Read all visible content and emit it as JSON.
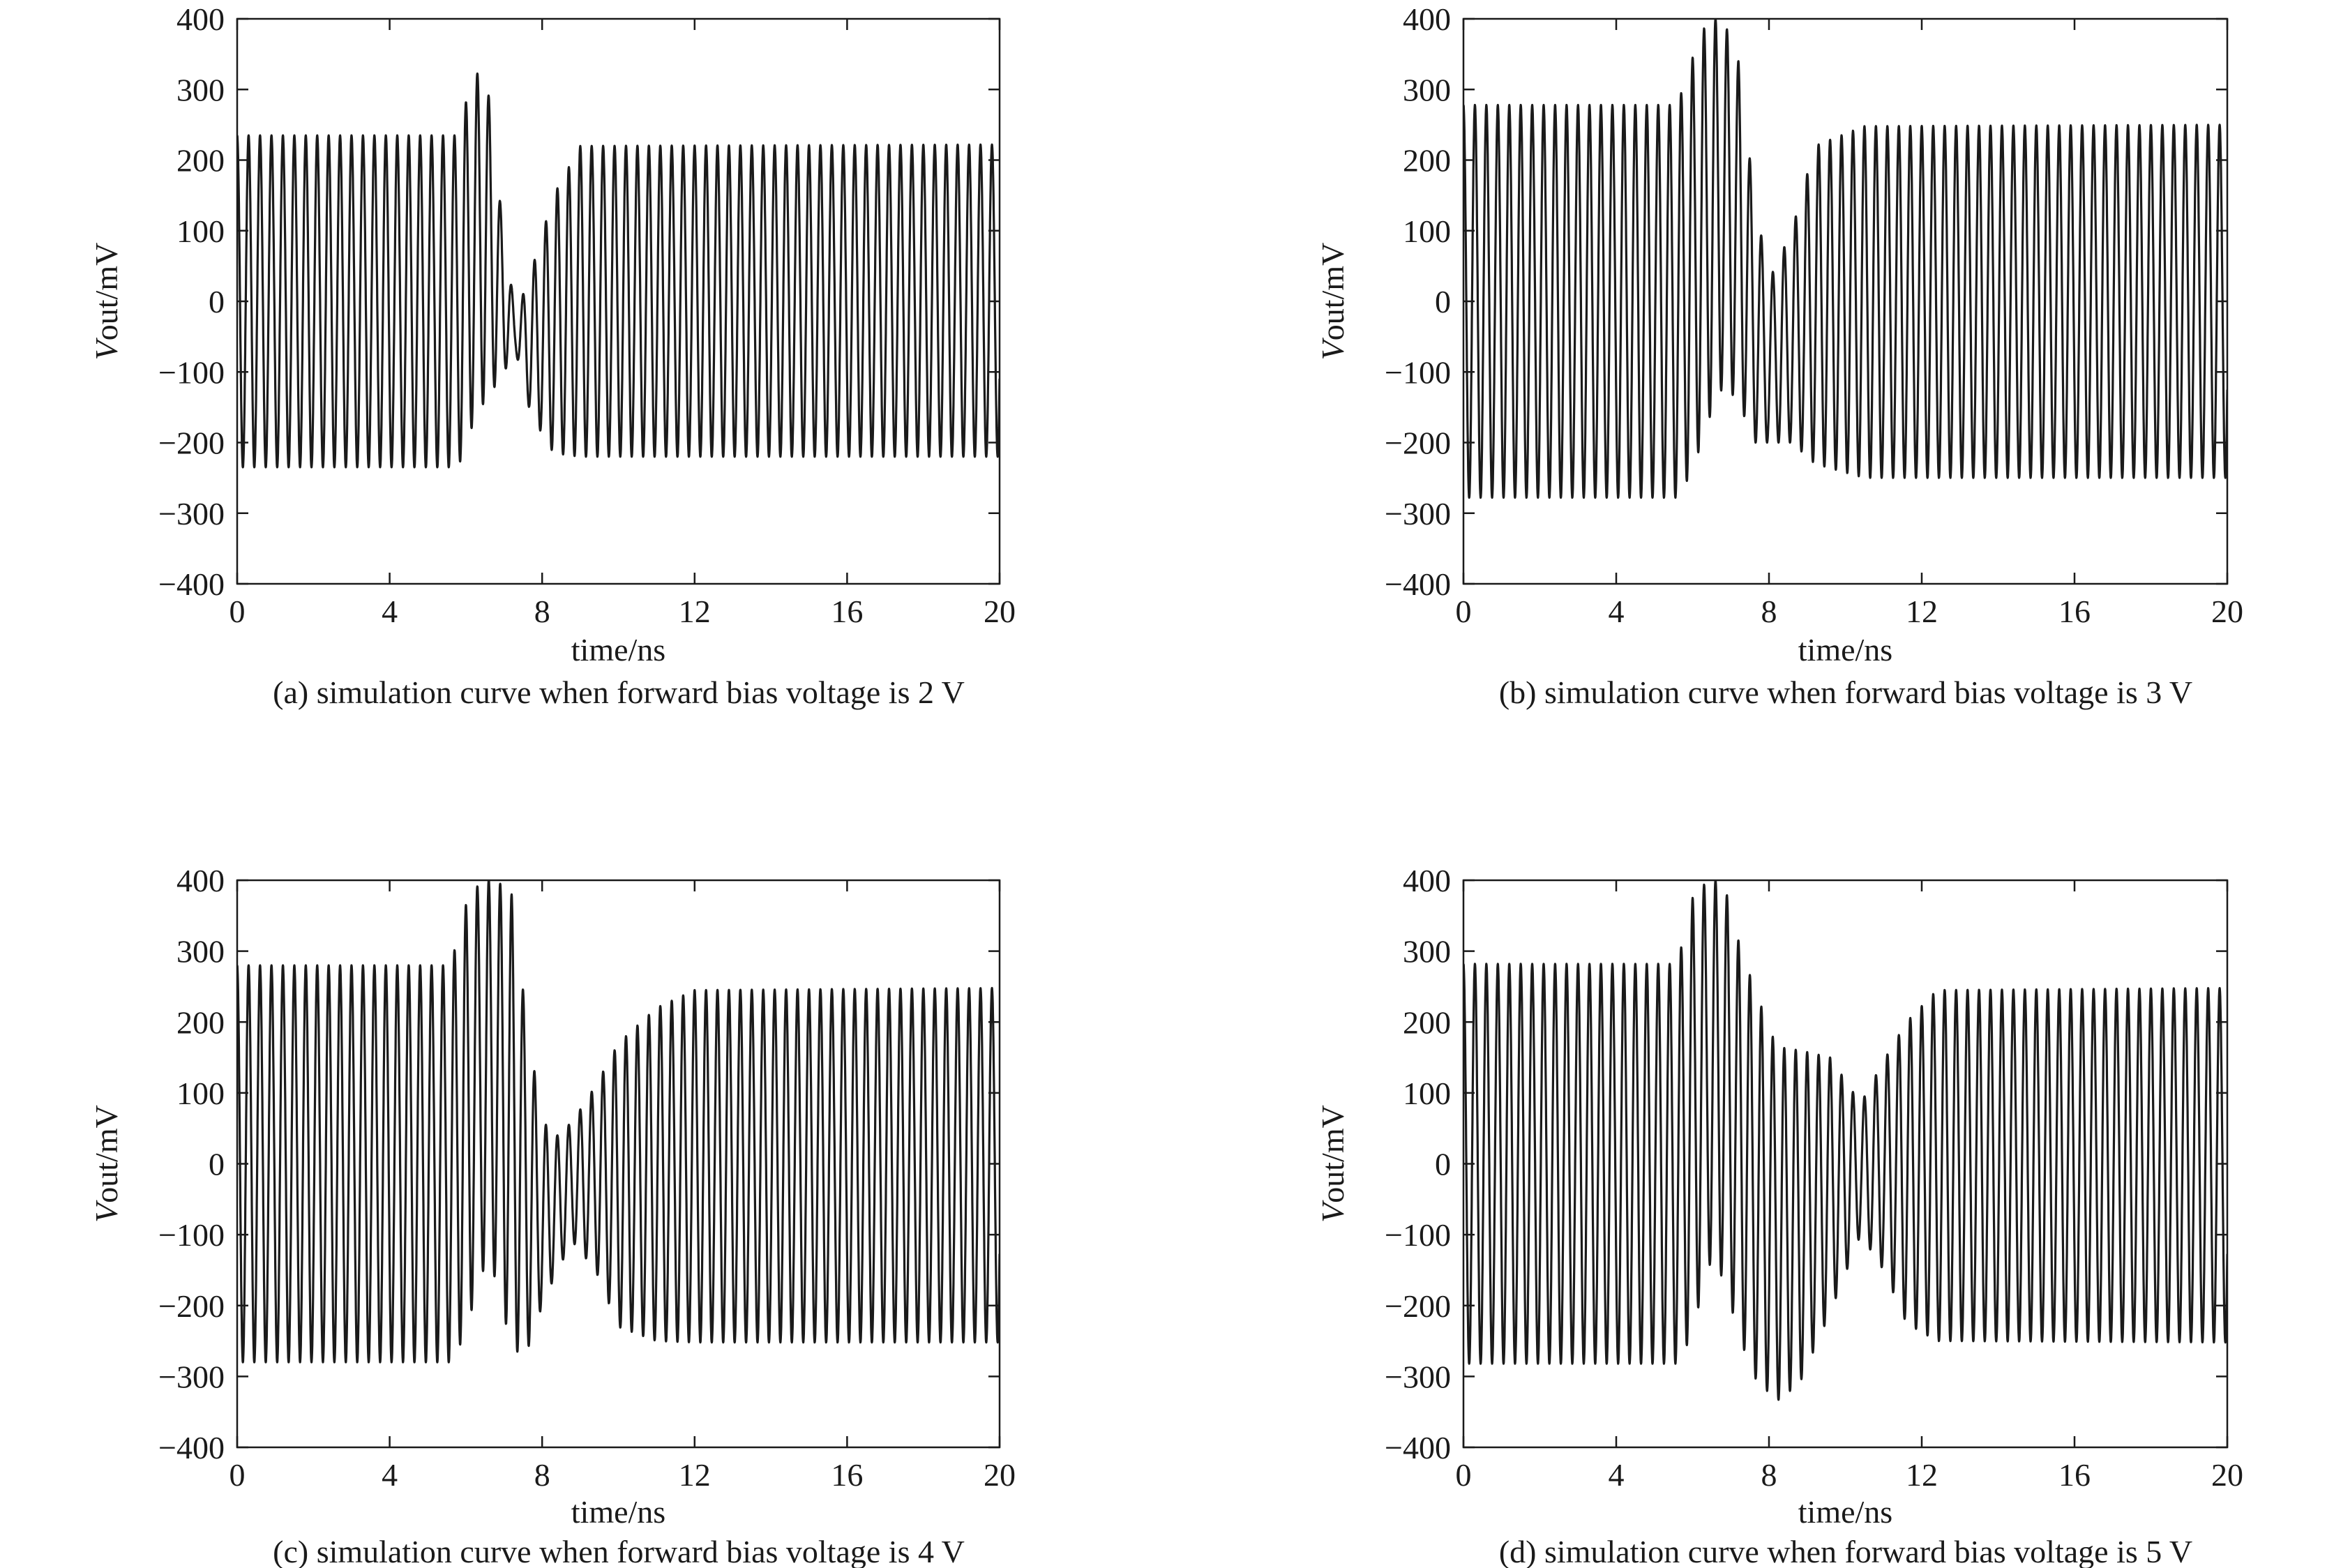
{
  "chart_data": [
    {
      "type": "line",
      "caption": "(a) simulation curve when forward bias voltage is 2 V",
      "xlabel": "time/ns",
      "ylabel": {
        "italic": "V",
        "rest": "out/mV"
      },
      "xlim": [
        0,
        20
      ],
      "ylim": [
        -400,
        400
      ],
      "xticks": [
        0,
        4,
        8,
        12,
        16,
        20
      ],
      "yticks": [
        400,
        300,
        200,
        100,
        0,
        -100,
        -200,
        -300,
        -400
      ],
      "ytick_labels": [
        "400",
        "300",
        "200",
        "100",
        "0",
        "−100",
        "−200",
        "−300",
        "−400"
      ],
      "grid": false,
      "legend": "none",
      "period_ns": 0.3,
      "series": [
        {
          "color": "#1a1a1a",
          "x": [
            0,
            5.8,
            6.1,
            6.5,
            6.9,
            7.3,
            7.7,
            8.3,
            9.0,
            20
          ],
          "envelope_max": [
            235,
            235,
            305,
            340,
            140,
            -20,
            40,
            150,
            220,
            222
          ],
          "envelope_min": [
            -235,
            -235,
            -185,
            -140,
            -110,
            -70,
            -160,
            -215,
            -220,
            -220
          ]
        }
      ]
    },
    {
      "type": "line",
      "caption": "(b) simulation curve when forward bias voltage is 3 V",
      "xlabel": "time/ns",
      "ylabel": {
        "italic": "V",
        "rest": "out/mV"
      },
      "xlim": [
        0,
        20
      ],
      "ylim": [
        -400,
        400
      ],
      "xticks": [
        0,
        4,
        8,
        12,
        16,
        20
      ],
      "yticks": [
        400,
        300,
        200,
        100,
        0,
        -100,
        -200,
        -300,
        -400
      ],
      "ytick_labels": [
        "400",
        "300",
        "200",
        "100",
        "0",
        "−100",
        "−200",
        "−300",
        "−400"
      ],
      "grid": false,
      "legend": "none",
      "period_ns": 0.3,
      "series": [
        {
          "color": "#1a1a1a",
          "x": [
            0,
            5.6,
            6.0,
            6.4,
            6.8,
            7.2,
            7.6,
            8.0,
            8.6,
            9.2,
            10.5,
            20
          ],
          "envelope_max": [
            278,
            278,
            345,
            400,
            400,
            340,
            155,
            30,
            100,
            220,
            248,
            250
          ],
          "envelope_min": [
            -278,
            -278,
            -240,
            -170,
            -120,
            -140,
            -200,
            -200,
            -200,
            -230,
            -250,
            -250
          ]
        }
      ]
    },
    {
      "type": "line",
      "caption": "(c) simulation curve when forward bias voltage is 4 V",
      "xlabel": "time/ns",
      "ylabel": {
        "italic": "V",
        "rest": "out/mV"
      },
      "xlim": [
        0,
        20
      ],
      "ylim": [
        -400,
        400
      ],
      "xticks": [
        0,
        4,
        8,
        12,
        16,
        20
      ],
      "yticks": [
        400,
        300,
        200,
        100,
        0,
        -100,
        -200,
        -300,
        -400
      ],
      "ytick_labels": [
        "400",
        "300",
        "200",
        "100",
        "0",
        "−100",
        "−200",
        "−300",
        "−400"
      ],
      "grid": false,
      "legend": "none",
      "period_ns": 0.3,
      "series": [
        {
          "color": "#1a1a1a",
          "x": [
            0,
            5.6,
            6.0,
            6.4,
            6.8,
            7.2,
            7.6,
            8.0,
            8.4,
            8.8,
            9.4,
            10.0,
            11.0,
            12.0,
            20
          ],
          "envelope_max": [
            280,
            280,
            365,
            400,
            400,
            380,
            200,
            60,
            40,
            60,
            110,
            170,
            220,
            245,
            248
          ],
          "envelope_min": [
            -280,
            -280,
            -240,
            -150,
            -160,
            -265,
            -265,
            -200,
            -150,
            -110,
            -150,
            -230,
            -250,
            -252,
            -252
          ]
        }
      ]
    },
    {
      "type": "line",
      "caption": "(d) simulation curve when forward bias voltage is 5 V",
      "xlabel": "time/ns",
      "ylabel": {
        "italic": "V",
        "rest": "out/mV"
      },
      "xlim": [
        0,
        20
      ],
      "ylim": [
        -400,
        400
      ],
      "xticks": [
        0,
        4,
        8,
        12,
        16,
        20
      ],
      "yticks": [
        400,
        300,
        200,
        100,
        0,
        -100,
        -200,
        -300,
        -400
      ],
      "ytick_labels": [
        "400",
        "300",
        "200",
        "100",
        "0",
        "−100",
        "−200",
        "−300",
        "−400"
      ],
      "grid": false,
      "legend": "none",
      "period_ns": 0.3,
      "series": [
        {
          "color": "#1a1a1a",
          "x": [
            0,
            5.6,
            6.0,
            6.4,
            6.8,
            7.2,
            7.6,
            8.2,
            8.8,
            9.6,
            10.4,
            11.0,
            11.6,
            12.4,
            20
          ],
          "envelope_max": [
            282,
            282,
            375,
            400,
            400,
            315,
            250,
            165,
            160,
            150,
            85,
            145,
            200,
            245,
            248
          ],
          "envelope_min": [
            -282,
            -282,
            -240,
            -140,
            -160,
            -240,
            -300,
            -335,
            -310,
            -210,
            -100,
            -150,
            -225,
            -250,
            -252
          ]
        }
      ]
    }
  ]
}
